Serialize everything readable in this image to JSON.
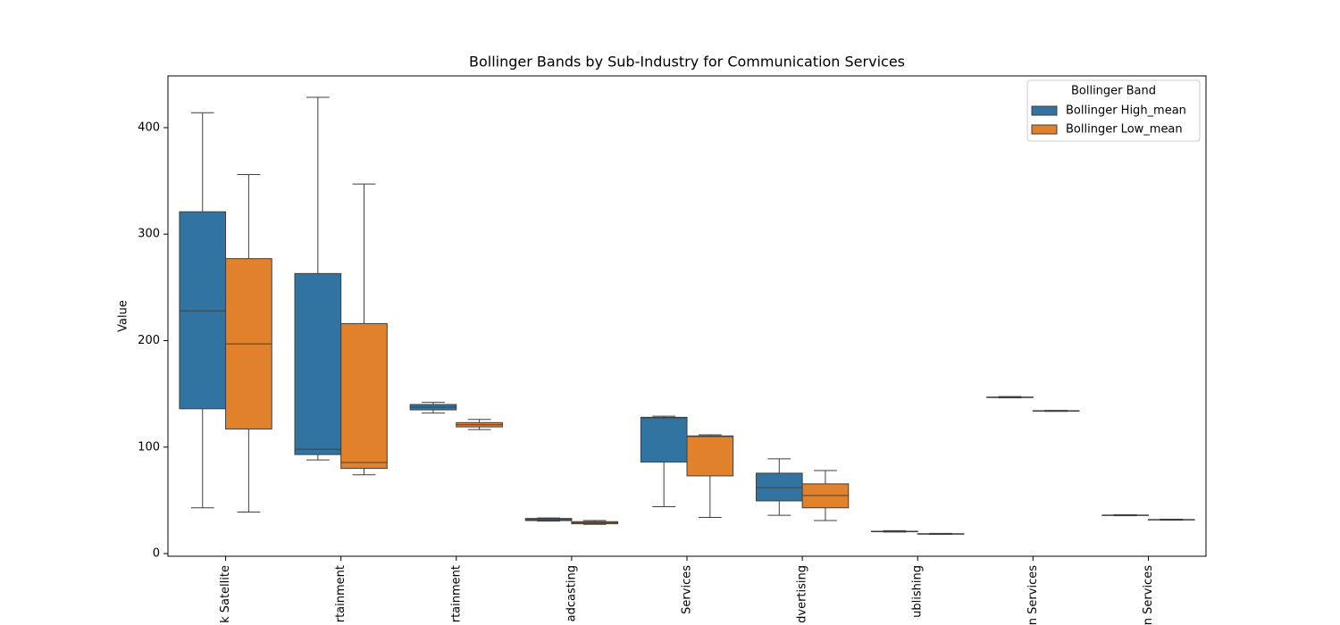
{
  "chart_data": {
    "type": "box",
    "title": "Bollinger Bands by Sub-Industry for Communication Services",
    "y_label": "Value",
    "categories": [
      "k Satellite",
      "rtainment",
      "rtainment",
      "adcasting",
      "Services",
      "dvertising",
      "ublishing",
      "n Services",
      "n Services"
    ],
    "series": [
      {
        "name": "Bollinger High_mean",
        "color": "#3274a1",
        "max": [
          414,
          428.5,
          142,
          33.5,
          129,
          89,
          21.5,
          147.5,
          36.5
        ],
        "q3": [
          321,
          263,
          140,
          33,
          128,
          75.5,
          21,
          147,
          36.2
        ],
        "median": [
          228,
          98,
          137.5,
          32,
          127.5,
          62,
          20.8,
          146.8,
          36
        ],
        "q1": [
          136,
          93,
          135,
          31,
          86,
          49.5,
          20.5,
          146.5,
          35.8
        ],
        "min": [
          43,
          88,
          132,
          30.5,
          44,
          36,
          20.2,
          146.2,
          35.5
        ]
      },
      {
        "name": "Bollinger Low_mean",
        "color": "#e1812c",
        "max": [
          356,
          347,
          126,
          31,
          111.5,
          78,
          19,
          134.5,
          32.3
        ],
        "q3": [
          277,
          216,
          123,
          30,
          110.5,
          65.5,
          18.7,
          134.2,
          32
        ],
        "median": [
          197,
          85.5,
          121,
          29,
          110,
          54.5,
          18.5,
          134,
          31.8
        ],
        "q1": [
          117,
          80,
          119,
          28,
          73,
          43,
          18.2,
          133.7,
          31.6
        ],
        "min": [
          39,
          74,
          116.5,
          27.5,
          34,
          31,
          18,
          133.5,
          31.4
        ]
      }
    ],
    "legend_title": "Bollinger Band",
    "legend_loc": "upper right",
    "ylim": [
      -2.5,
      448.6
    ],
    "yticks": [
      0,
      100,
      200,
      300,
      400
    ]
  }
}
